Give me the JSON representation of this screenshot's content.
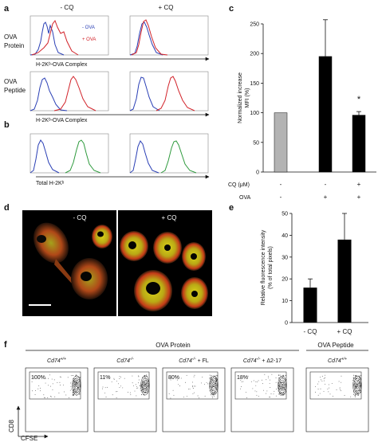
{
  "figure": {
    "panel_labels": {
      "a": "a",
      "b": "b",
      "c": "c",
      "d": "d",
      "e": "e",
      "f": "f"
    },
    "panel_a": {
      "col_headers": [
        "- CQ",
        "+ CQ"
      ],
      "rows": [
        {
          "label_line1": "OVA",
          "label_line2": "Protein",
          "xaxis": "H-2Kᵇ-OVA Complex"
        },
        {
          "label_line1": "OVA",
          "label_line2": "Peptide",
          "xaxis": "H-2Kᵇ-OVA Complex"
        }
      ],
      "legend": [
        {
          "label": "- OVA",
          "color": "#2a3fb5"
        },
        {
          "label": "+ OVA",
          "color": "#d2232a"
        }
      ]
    },
    "panel_b": {
      "xaxis": "Total H-2Kᵇ",
      "colors": [
        "#2a3fb5",
        "#2e9a3d"
      ]
    },
    "panel_d": {
      "col_headers": [
        "- CQ",
        "+ CQ"
      ]
    },
    "panel_f": {
      "group_protein": "OVA Protein",
      "group_peptide": "OVA Peptide",
      "plots": [
        {
          "genotype": "Cd74",
          "sup": "+/+",
          "suffix": "",
          "percent": "100%"
        },
        {
          "genotype": "Cd74",
          "sup": "-/-",
          "suffix": "",
          "percent": "11%"
        },
        {
          "genotype": "Cd74",
          "sup": "-/-",
          "suffix": " + FL",
          "percent": "80%"
        },
        {
          "genotype": "Cd74",
          "sup": "-/-",
          "suffix": " + Δ2-17",
          "percent": "18%"
        },
        {
          "genotype": "Cd74",
          "sup": "+/+",
          "suffix": "",
          "percent": ""
        }
      ],
      "ylabel": "CD8",
      "xlabel": "CFSE"
    }
  },
  "chart_data": [
    {
      "type": "bar",
      "panel": "c",
      "ylabel_line1": "Normalized increase",
      "ylabel_line2": "MFI (%)",
      "ylim": [
        0,
        250
      ],
      "yticks": [
        "0",
        "50",
        "100",
        "150",
        "200",
        "250"
      ],
      "values": [
        100,
        195,
        96
      ],
      "errors": [
        0,
        62,
        6
      ],
      "bar_colors": [
        "#b3b3b3",
        "#000000",
        "#000000"
      ],
      "annotation": "*",
      "conditions": [
        {
          "label": "CQ (μM)",
          "marks": [
            "-",
            "-",
            "+"
          ]
        },
        {
          "label": "OVA",
          "marks": [
            "-",
            "+",
            "+"
          ]
        }
      ]
    },
    {
      "type": "bar",
      "panel": "e",
      "ylabel_line1": "Relative fluorescence intensity",
      "ylabel_line2": "(% of total pixels)",
      "ylim": [
        0,
        50
      ],
      "yticks": [
        "0",
        "10",
        "20",
        "30",
        "40",
        "50"
      ],
      "categories": [
        "- CQ",
        "+ CQ"
      ],
      "values": [
        16,
        38
      ],
      "errors": [
        4,
        12
      ],
      "bar_colors": [
        "#000000",
        "#000000"
      ]
    }
  ]
}
